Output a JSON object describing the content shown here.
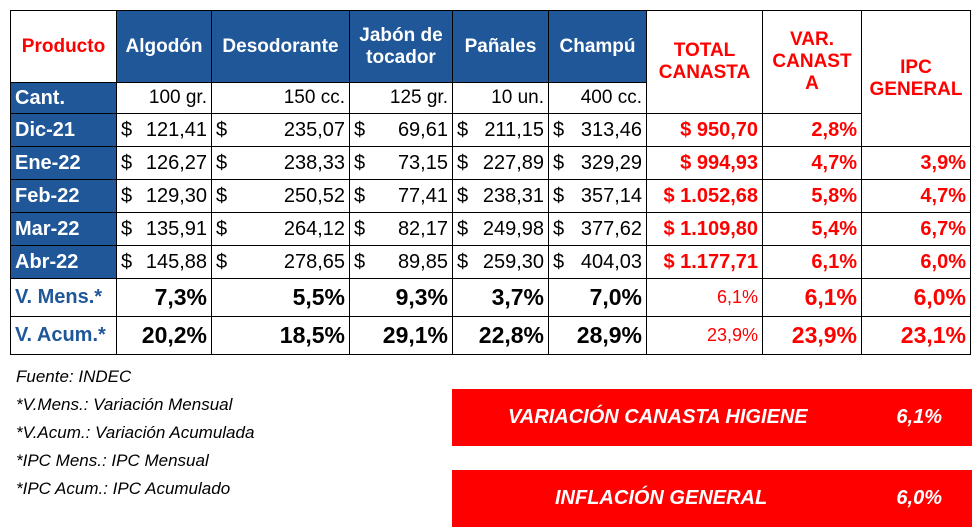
{
  "table": {
    "headers": {
      "producto": "Producto",
      "algodon": "Algodón",
      "desodorante": "Desodorante",
      "jabon_1": "Jabón de",
      "jabon_2": "tocador",
      "panales": "Pañales",
      "champu": "Champú",
      "total_1": "TOTAL",
      "total_2": "CANASTA",
      "var_1": "VAR.",
      "var_2": "CANAST",
      "var_3": "A",
      "ipc_1": "IPC",
      "ipc_2": "GENERAL"
    },
    "cant": {
      "label": "Cant.",
      "units": [
        "100 gr.",
        "150 cc.",
        "125 gr.",
        "10 un.",
        "400 cc."
      ]
    },
    "rows": [
      {
        "label": "Dic-21",
        "prices": [
          "121,41",
          "235,07",
          "69,61",
          "211,15",
          "313,46"
        ],
        "total": "$ 950,70",
        "var": "2,8%",
        "ipc": ""
      },
      {
        "label": "Ene-22",
        "prices": [
          "126,27",
          "238,33",
          "73,15",
          "227,89",
          "329,29"
        ],
        "total": "$ 994,93",
        "var": "4,7%",
        "ipc": "3,9%"
      },
      {
        "label": "Feb-22",
        "prices": [
          "129,30",
          "250,52",
          "77,41",
          "238,31",
          "357,14"
        ],
        "total": "$ 1.052,68",
        "var": "5,8%",
        "ipc": "4,7%"
      },
      {
        "label": "Mar-22",
        "prices": [
          "135,91",
          "264,12",
          "82,17",
          "249,98",
          "377,62"
        ],
        "total": "$ 1.109,80",
        "var": "5,4%",
        "ipc": "6,7%"
      },
      {
        "label": "Abr-22",
        "prices": [
          "145,88",
          "278,65",
          "89,85",
          "259,30",
          "404,03"
        ],
        "total": "$ 1.177,71",
        "var": "6,1%",
        "ipc": "6,0%"
      }
    ],
    "currency": "$",
    "vmens": {
      "label": "V. Mens.*",
      "values": [
        "7,3%",
        "5,5%",
        "9,3%",
        "3,7%",
        "7,0%"
      ],
      "total": "6,1%",
      "var": "6,1%",
      "ipc": "6,0%"
    },
    "vacum": {
      "label": "V. Acum.*",
      "values": [
        "20,2%",
        "18,5%",
        "29,1%",
        "22,8%",
        "28,9%"
      ],
      "total": "23,9%",
      "var": "23,9%",
      "ipc": "23,1%"
    }
  },
  "notes": [
    "Fuente: INDEC",
    "*V.Mens.: Variación Mensual",
    "*V.Acum.: Variación Acumulada",
    "*IPC Mens.: IPC Mensual",
    "*IPC Acum.: IPC Acumulado"
  ],
  "banners": [
    {
      "label": "VARIACIÓN CANASTA HIGIENE",
      "value": "6,1%"
    },
    {
      "label": "INFLACIÓN GENERAL",
      "value": "6,0%"
    }
  ],
  "colors": {
    "header_blue": "#1f5799",
    "accent_red": "#ff0000"
  }
}
